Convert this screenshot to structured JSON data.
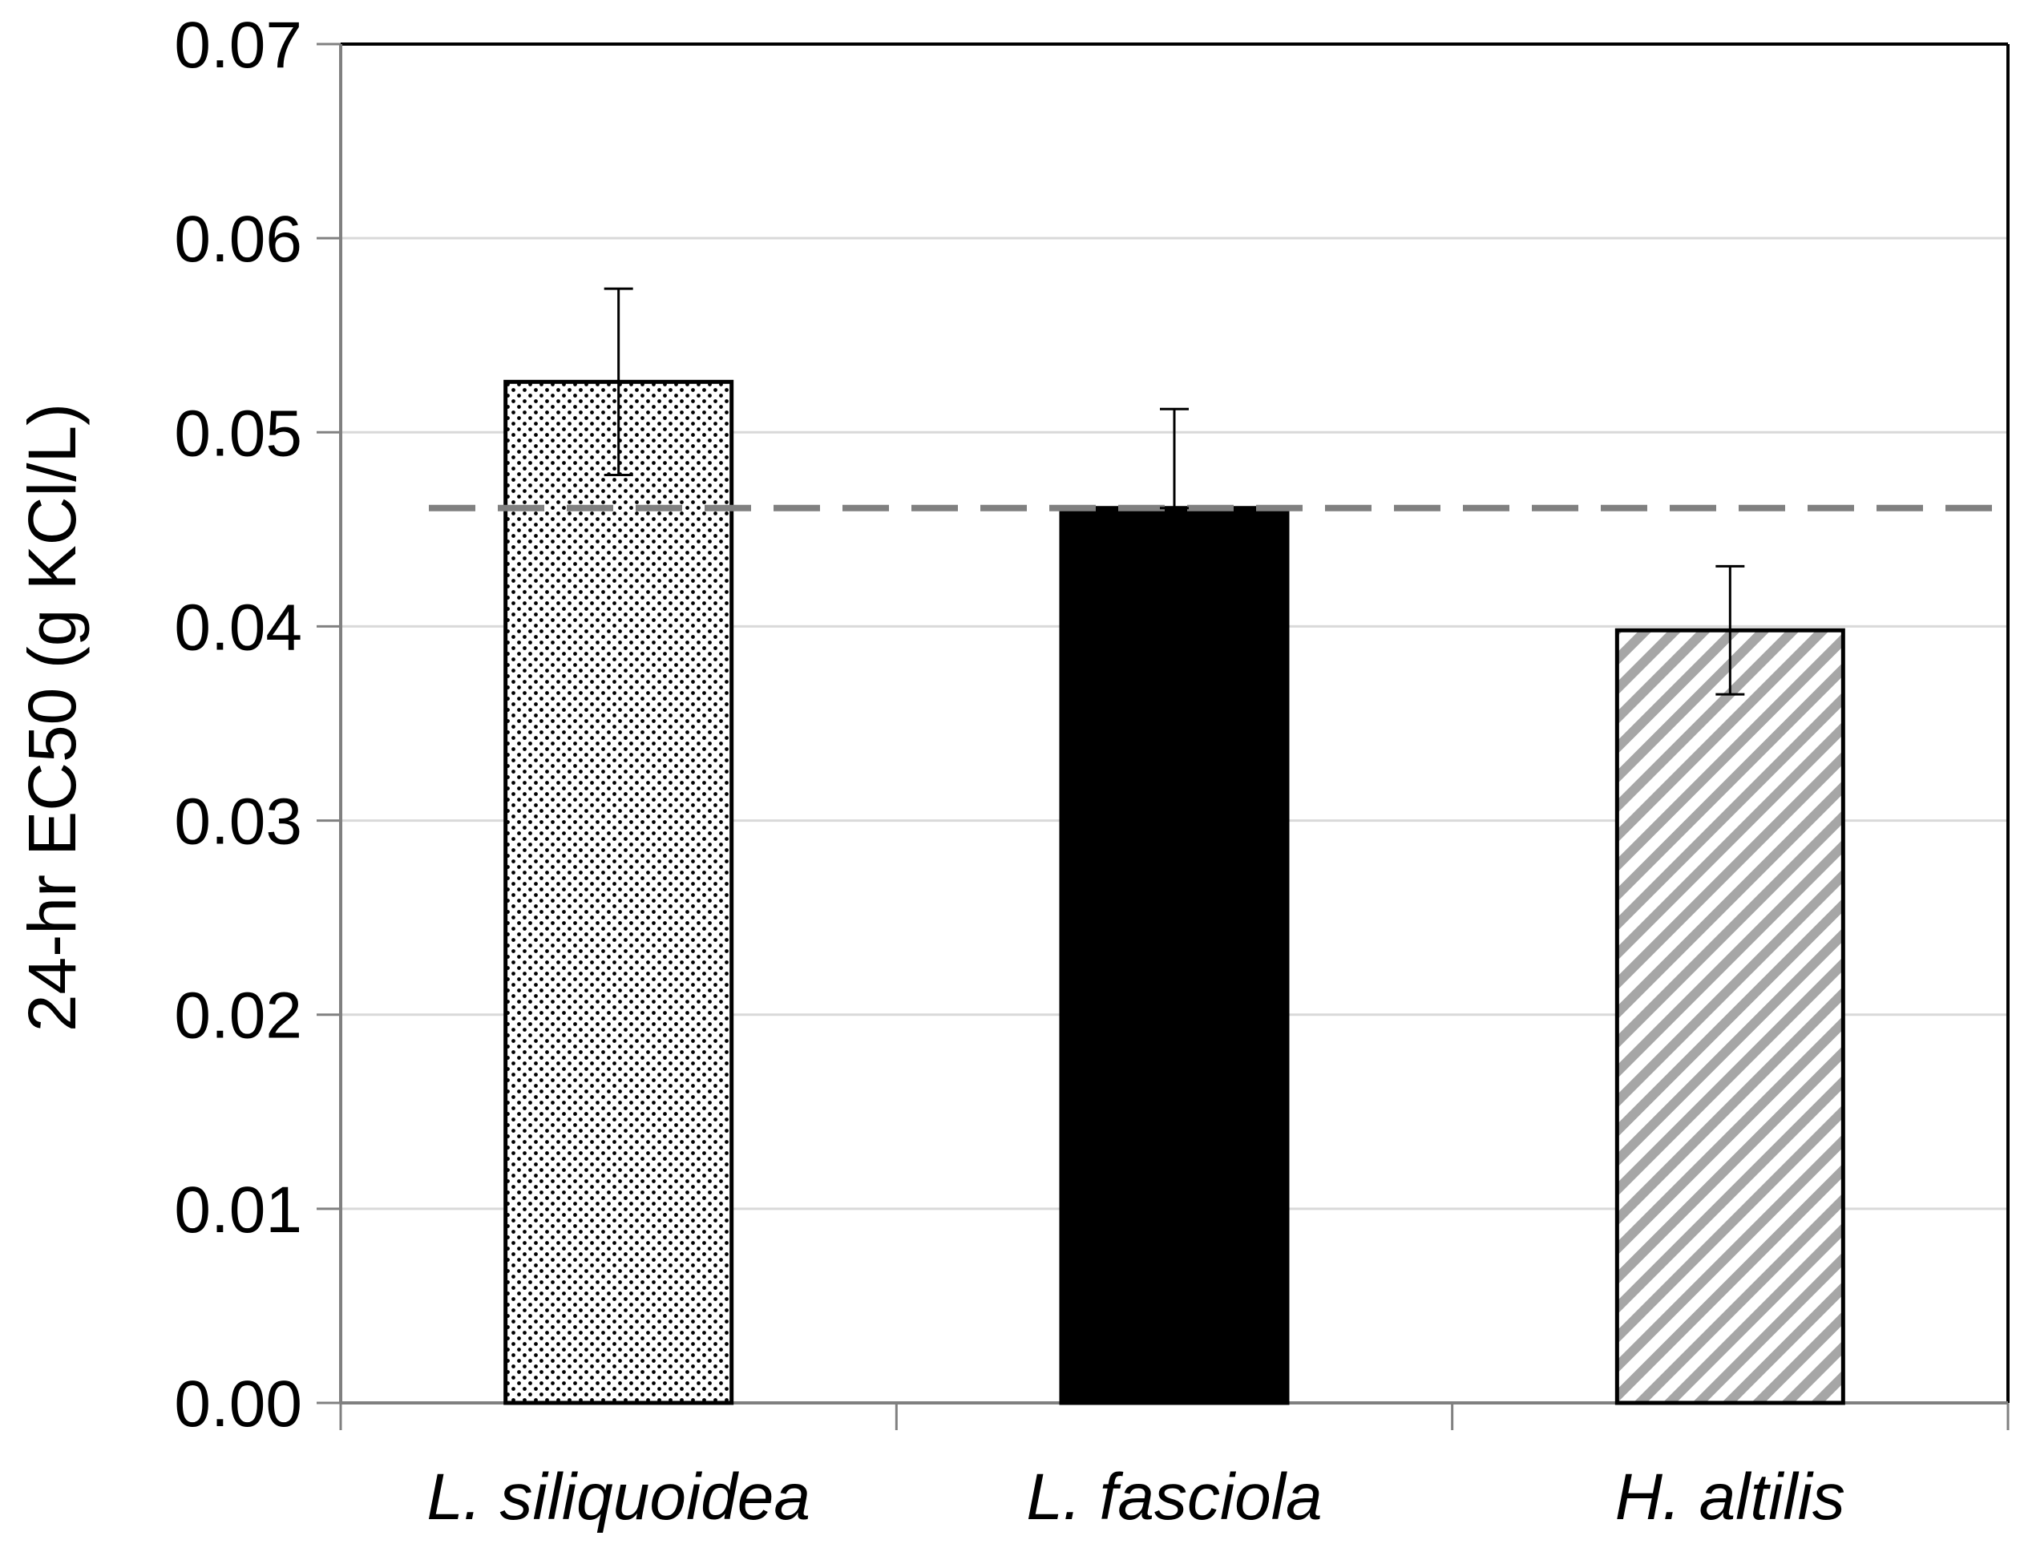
{
  "chart_data": {
    "type": "bar",
    "title": "",
    "xlabel": "",
    "ylabel": "24-hr EC50 (g KCl/L)",
    "ylim": [
      0,
      0.07
    ],
    "yticks": [
      "0.00",
      "0.01",
      "0.02",
      "0.03",
      "0.04",
      "0.05",
      "0.06",
      "0.07"
    ],
    "ytick_values": [
      0,
      0.01,
      0.02,
      0.03,
      0.04,
      0.05,
      0.06,
      0.07
    ],
    "grid": true,
    "categories": [
      "L. siliquoidea",
      "L. fasciola",
      "H. altilis"
    ],
    "values": [
      0.0526,
      0.0461,
      0.0398
    ],
    "error_low": [
      0.0478,
      0.0461,
      0.0365
    ],
    "error_high": [
      0.0574,
      0.0512,
      0.0431
    ],
    "fills": [
      "dots",
      "solid",
      "stripes"
    ],
    "reference_line": {
      "value": 0.0461,
      "style": "dashed",
      "color": "#808080"
    }
  }
}
